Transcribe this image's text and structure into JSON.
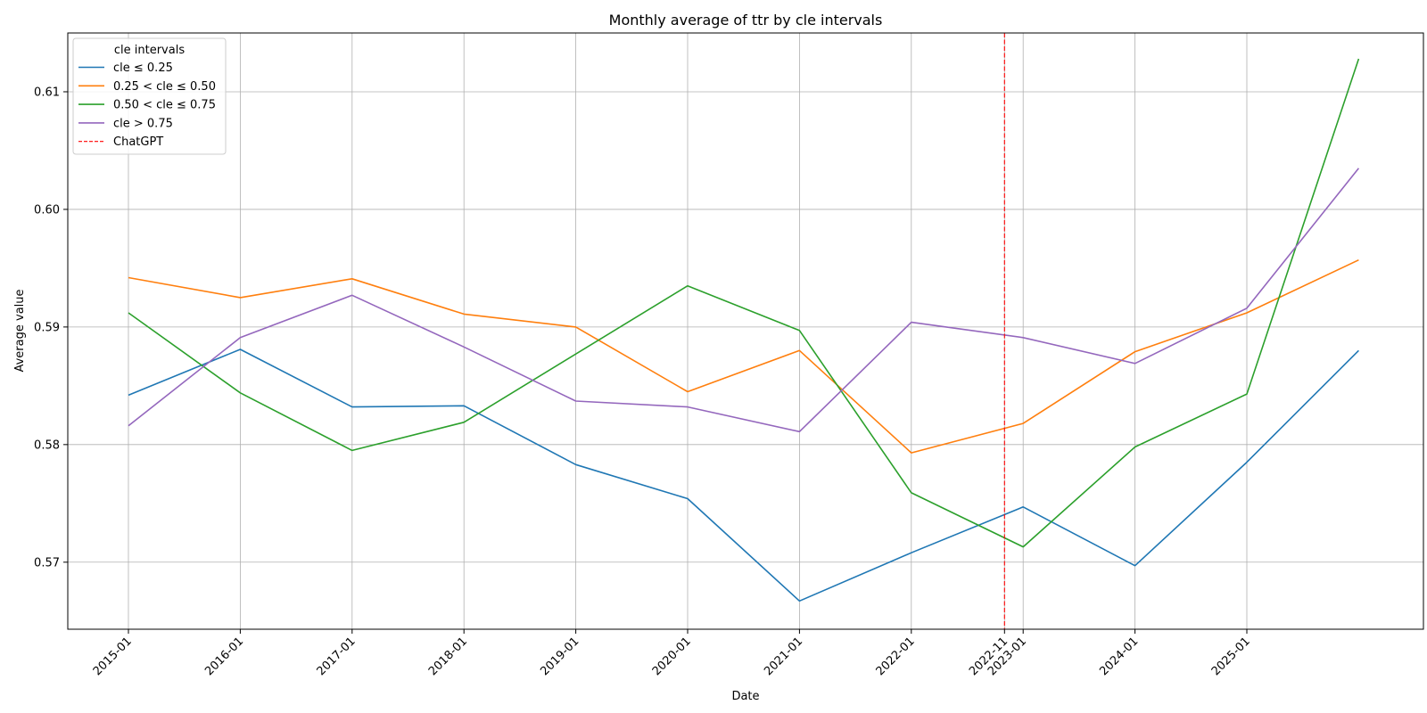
{
  "chart_data": {
    "type": "line",
    "title": "Monthly average of ttr by cle intervals",
    "xlabel": "Date",
    "ylabel": "Average value",
    "x": [
      "2015-01",
      "2016-01",
      "2017-01",
      "2018-01",
      "2019-01",
      "2020-01",
      "2021-01",
      "2022-01",
      "2023-01",
      "2024-01",
      "2025-01",
      "2026-01"
    ],
    "x_tick_labels": [
      "2015-01",
      "2016-01",
      "2017-01",
      "2018-01",
      "2019-01",
      "2020-01",
      "2021-01",
      "2022-01",
      "2022-11",
      "2023-01",
      "2024-01",
      "2025-01"
    ],
    "ylim": [
      0.5643,
      0.615
    ],
    "y_ticks": [
      0.57,
      0.58,
      0.59,
      0.6,
      0.61
    ],
    "y_tick_labels": [
      "0.57",
      "0.58",
      "0.59",
      "0.60",
      "0.61"
    ],
    "grid": true,
    "legend": {
      "title": "cle intervals",
      "placement": "top-left"
    },
    "series": [
      {
        "name": "cle ≤ 0.25",
        "color": "#1f77b4",
        "values": [
          0.5842,
          0.5881,
          0.5832,
          0.5833,
          0.5783,
          0.5754,
          0.5667,
          0.5708,
          0.5747,
          0.5697,
          0.5785,
          0.588
        ]
      },
      {
        "name": "0.25 < cle ≤ 0.50",
        "color": "#ff7f0e",
        "values": [
          0.5942,
          0.5925,
          0.5941,
          0.5911,
          0.59,
          0.5845,
          0.588,
          0.5793,
          0.5818,
          0.5879,
          0.5912,
          0.5957
        ]
      },
      {
        "name": "0.50 < cle ≤ 0.75",
        "color": "#2ca02c",
        "values": [
          0.5912,
          0.5844,
          0.5795,
          0.5819,
          0.5877,
          0.5935,
          0.5897,
          0.5759,
          0.5713,
          0.5798,
          0.5843,
          0.6128
        ]
      },
      {
        "name": "cle > 0.75",
        "color": "#9467bd",
        "values": [
          0.5816,
          0.5891,
          0.5927,
          0.5883,
          0.5837,
          0.5832,
          0.5811,
          0.5904,
          0.5891,
          0.5869,
          0.5916,
          0.6035
        ]
      }
    ],
    "annotations": [
      {
        "type": "vline",
        "x": "2022-11",
        "label": "ChatGPT",
        "color": "#ff0000",
        "style": "dashed"
      }
    ]
  }
}
